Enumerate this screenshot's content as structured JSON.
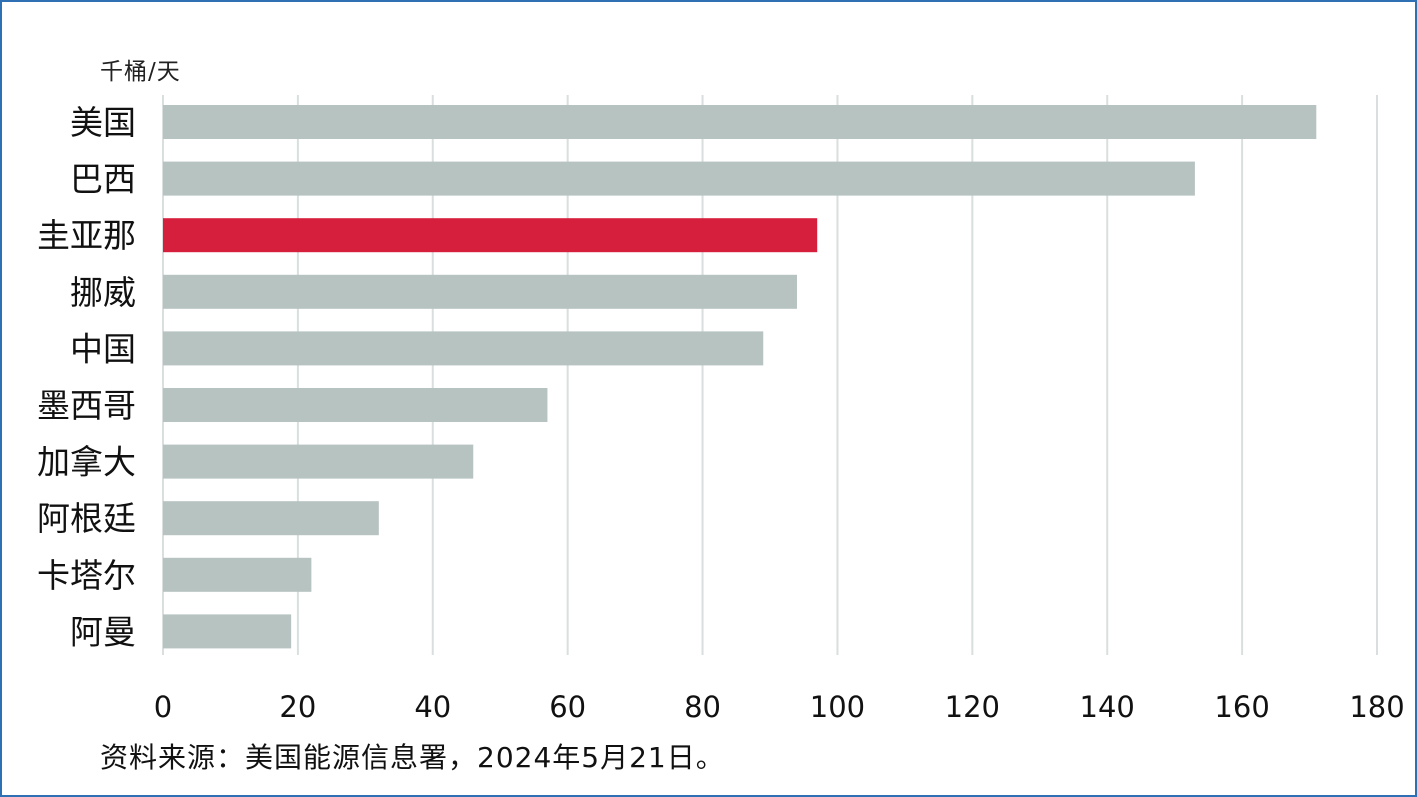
{
  "chart_data": {
    "type": "bar",
    "orientation": "horizontal",
    "unit_label": "千桶/天",
    "categories": [
      "美国",
      "巴西",
      "圭亚那",
      "挪威",
      "中国",
      "墨西哥",
      "加拿大",
      "阿根廷",
      "卡塔尔",
      "阿曼"
    ],
    "values": [
      171,
      153,
      97,
      94,
      89,
      57,
      46,
      32,
      22,
      19
    ],
    "highlight": "圭亚那",
    "xlim": [
      0,
      180
    ],
    "xticks": [
      0,
      20,
      40,
      60,
      80,
      100,
      120,
      140,
      160,
      180
    ],
    "grid": "vertical",
    "colors": {
      "bar": "#b6c3c1",
      "highlight": "#d61f3d",
      "grid": "#d9dede",
      "frame": "#2f6fb3"
    },
    "source_note": "资料来源：美国能源信息署，2024年5月21日。"
  }
}
